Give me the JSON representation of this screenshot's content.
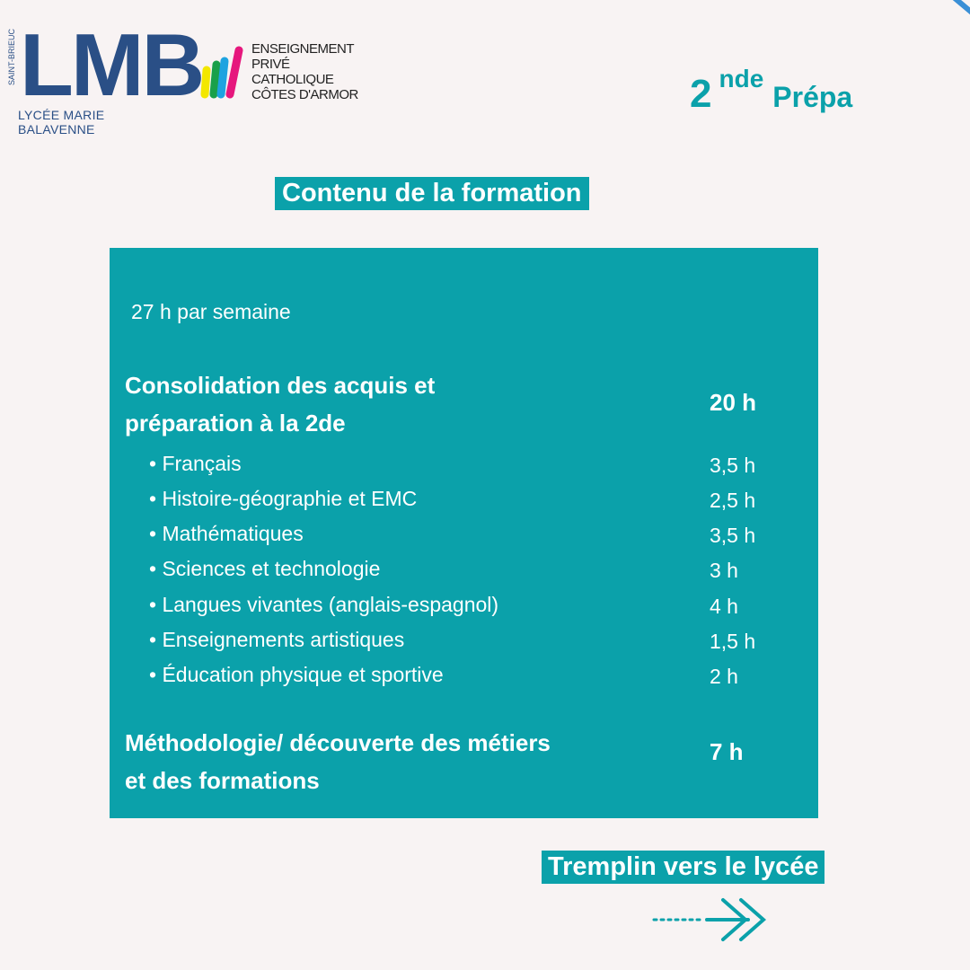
{
  "logos": {
    "lmb": {
      "letters": "LMB",
      "city": "SAINT-BRIEUC",
      "name": "LYCÉE MARIE BALAVENNE"
    },
    "epc": {
      "lines": [
        "ENSEIGNEMENT",
        "PRIVÉ",
        "CATHOLIQUE",
        "CÔTES D'ARMOR"
      ]
    }
  },
  "title": {
    "number": "2",
    "suffix": "nde",
    "word": "Prépa"
  },
  "heading": "Contenu de la formation",
  "box": {
    "weekly": "27 h par semaine",
    "section1": {
      "line1": "Consolidation des acquis  et",
      "line2": "préparation à la 2de",
      "hours": "20 h"
    },
    "subjects": [
      {
        "name": "Français",
        "hours": "3,5 h"
      },
      {
        "name": "Histoire-géographie et EMC",
        "hours": "2,5 h"
      },
      {
        "name": "Mathématiques",
        "hours": "3,5 h"
      },
      {
        "name": "Sciences et technologie",
        "hours": "3 h"
      },
      {
        "name": "Langues vivantes (anglais-espagnol)",
        "hours": "4 h"
      },
      {
        "name": "Enseignements artistiques",
        "hours": "1,5 h"
      },
      {
        "name": "Éducation physique et sportive",
        "hours": "2 h"
      }
    ],
    "section2": {
      "line1": "Méthodologie/ découverte des métiers",
      "line2": "et des formations",
      "hours": "7 h"
    }
  },
  "footer": {
    "tagline": "Tremplin vers le lycée"
  },
  "colors": {
    "teal": "#0ba1aa",
    "navy": "#2a4f86",
    "bg": "#f8f3f3"
  }
}
